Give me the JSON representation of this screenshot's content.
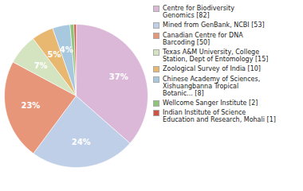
{
  "chart_data": {
    "type": "pie",
    "categories": [
      "Centre for Biodiversity\nGenomics [82]",
      "Mined from GenBank, NCBI [53]",
      "Canadian Centre for DNA\nBarcoding [50]",
      "Texas A&M University, College\nStation, Dept of Entomology [15]",
      "Zoological Survey of India [10]",
      "Chinese Academy of Sciences,\nXishuangbanna Tropical\nBotanic... [8]",
      "Wellcome Sanger Institute [2]",
      "Indian Institute of Science\nEducation and Research, Mohali [1]"
    ],
    "values": [
      37,
      24,
      23,
      7,
      5,
      4,
      0.9,
      0.5
    ],
    "value_labels": [
      "37%",
      "24%",
      "23%",
      "7%",
      "5%",
      "4%",
      null,
      null
    ],
    "colors": [
      "#dbb8d8",
      "#bfcfe8",
      "#e8967a",
      "#d4e3c0",
      "#e8b870",
      "#a8c8e0",
      "#8ec47a",
      "#d45040"
    ],
    "data_labels": true,
    "legend": "right"
  }
}
